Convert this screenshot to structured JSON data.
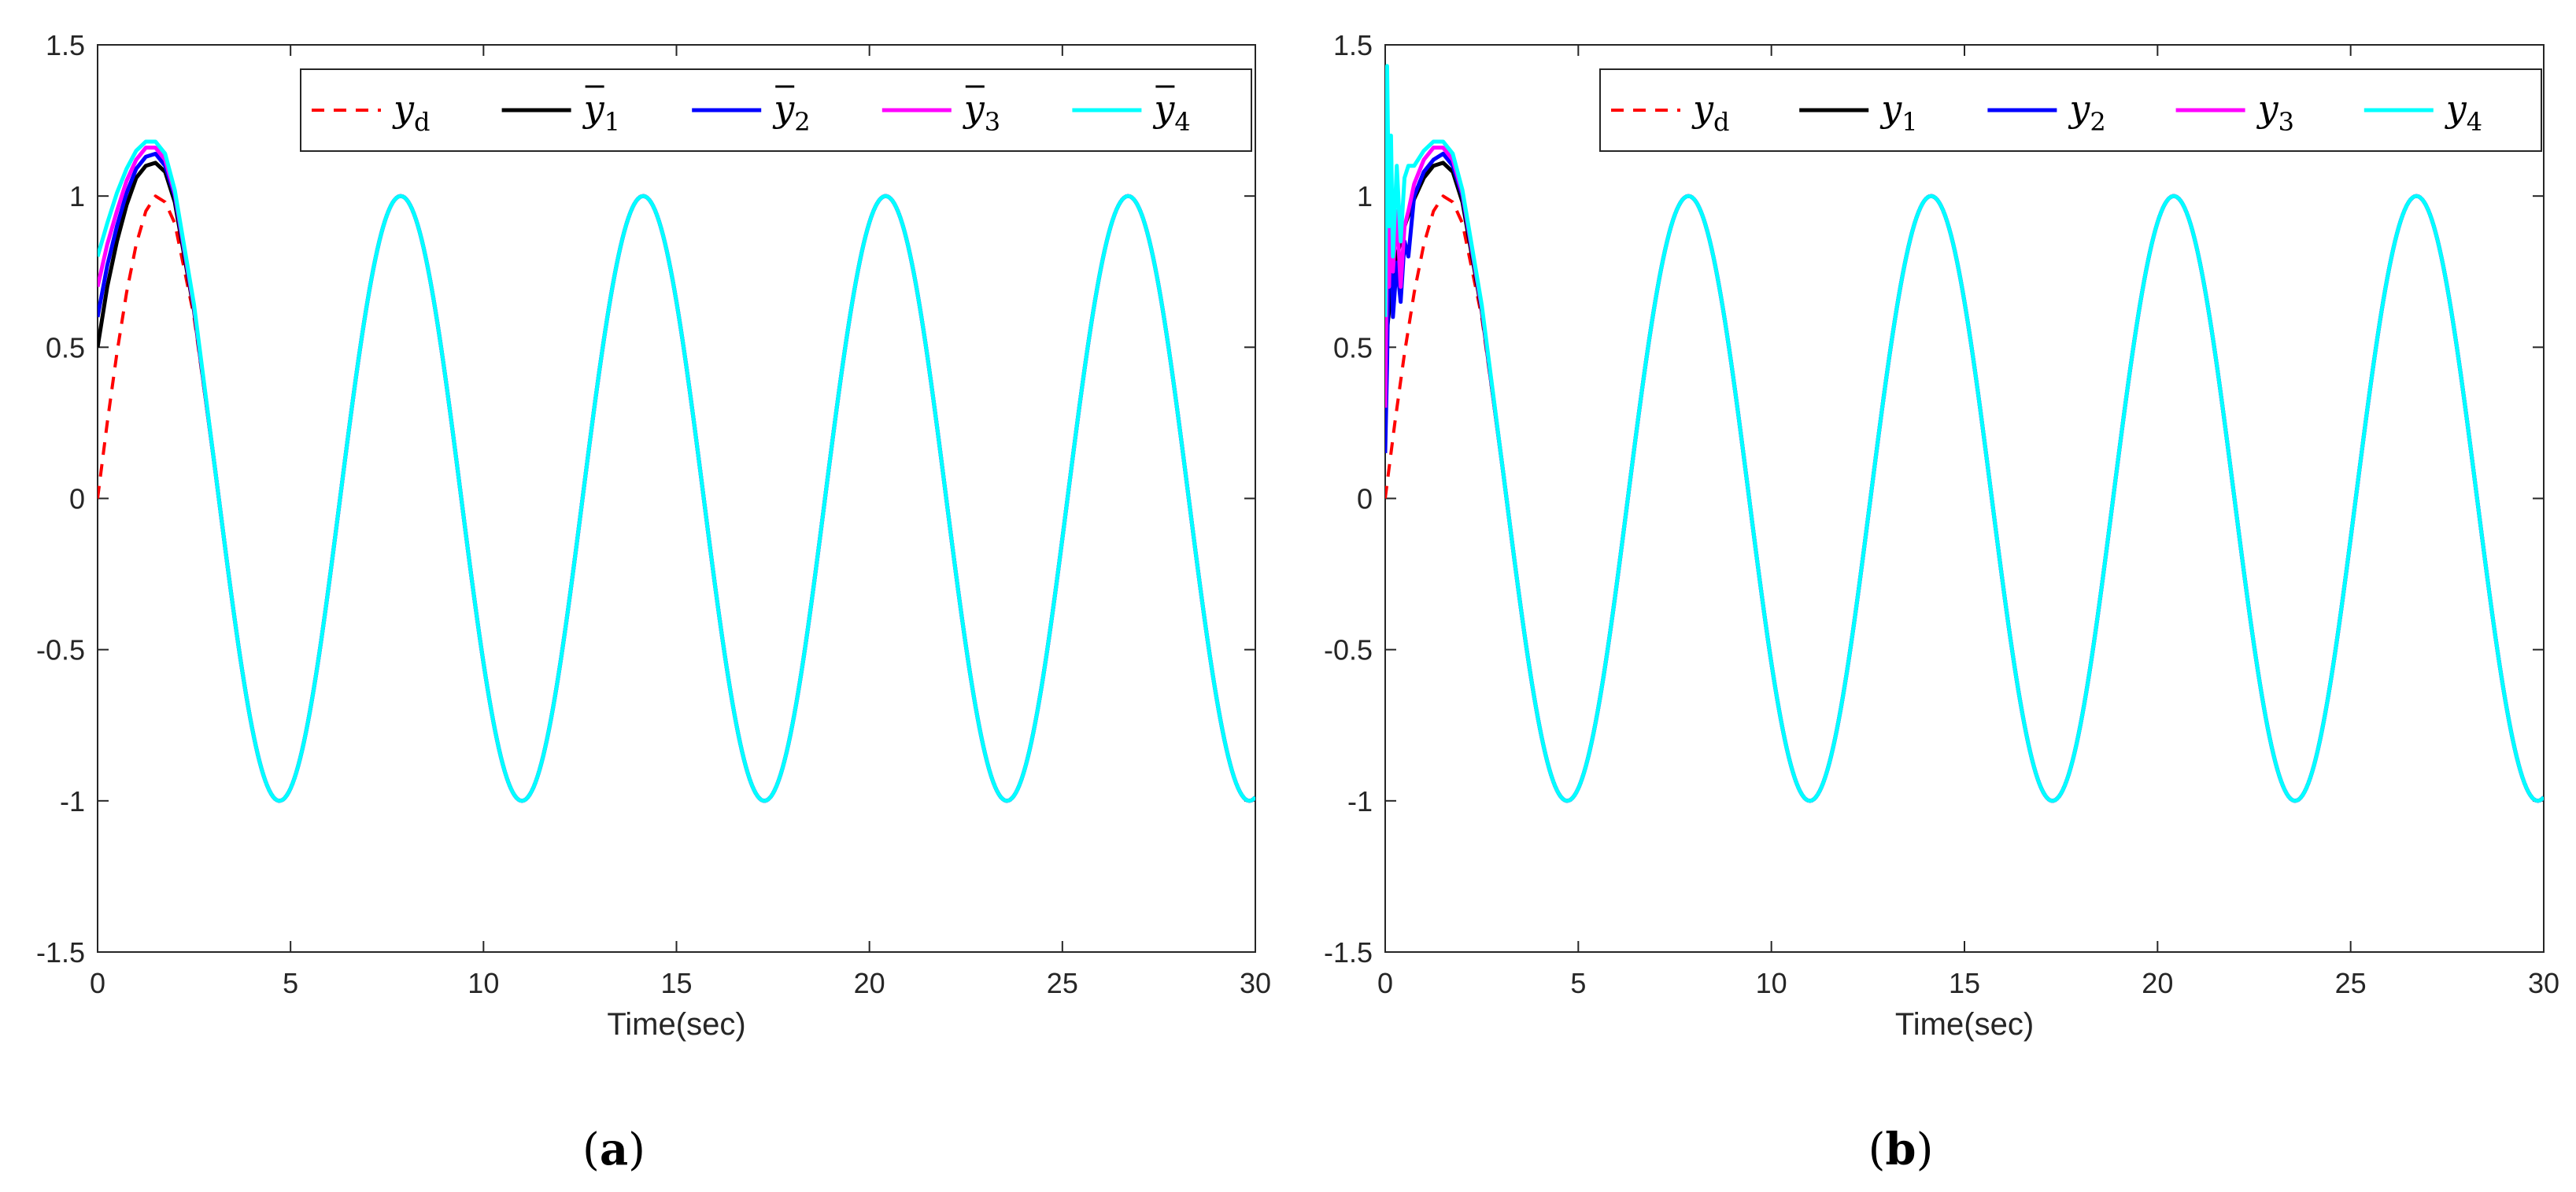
{
  "chart_data": [
    {
      "type": "line",
      "caption_open": "(",
      "caption_letter": "a",
      "caption_close": ")",
      "xlabel": "Time(sec)",
      "ylabel": "",
      "xlim": [
        0,
        30
      ],
      "ylim": [
        -1.5,
        1.5
      ],
      "x_ticks": [
        0,
        5,
        10,
        15,
        20,
        25,
        30
      ],
      "x_tick_labels": [
        "0",
        "5",
        "10",
        "15",
        "20",
        "25",
        "30"
      ],
      "y_ticks": [
        1.5,
        1,
        0.5,
        0,
        -0.5,
        -1,
        -1.5
      ],
      "y_tick_labels": [
        "1.5",
        "1",
        "0.5",
        "0",
        "-0.5",
        "-1",
        "-1.5"
      ],
      "grid": false,
      "legend_position": "top-right",
      "legend_orientation": "horizontal",
      "reference_function": "y = sin(t)",
      "series": [
        {
          "name": "y_d",
          "display": "y",
          "subscript": "d",
          "bar": false,
          "color": "#ff0000",
          "dash": "dashed",
          "x": [
            0,
            0.25,
            0.5,
            0.75,
            1.0,
            1.25,
            1.5,
            1.75,
            2.0,
            2.5,
            3.0
          ],
          "y": [
            0,
            0.25,
            0.48,
            0.68,
            0.84,
            0.95,
            1.0,
            0.98,
            0.91,
            0.6,
            0.14
          ]
        },
        {
          "name": "ȳ_1",
          "display": "y",
          "subscript": "1",
          "bar": true,
          "color": "#000000",
          "dash": "solid",
          "x": [
            0,
            0.25,
            0.5,
            0.75,
            1.0,
            1.25,
            1.5,
            1.75,
            2.0,
            2.5,
            3.0
          ],
          "y": [
            0.5,
            0.7,
            0.85,
            0.97,
            1.06,
            1.1,
            1.11,
            1.08,
            0.98,
            0.62,
            0.14
          ]
        },
        {
          "name": "ȳ_2",
          "display": "y",
          "subscript": "2",
          "bar": true,
          "color": "#0000ff",
          "dash": "solid",
          "x": [
            0,
            0.25,
            0.5,
            0.75,
            1.0,
            1.25,
            1.5,
            1.75,
            2.0,
            2.5,
            3.0
          ],
          "y": [
            0.6,
            0.77,
            0.9,
            1.01,
            1.09,
            1.13,
            1.14,
            1.1,
            1.0,
            0.63,
            0.14
          ]
        },
        {
          "name": "ȳ_3",
          "display": "y",
          "subscript": "3",
          "bar": true,
          "color": "#ff00ff",
          "dash": "solid",
          "x": [
            0,
            0.25,
            0.5,
            0.75,
            1.0,
            1.25,
            1.5,
            1.75,
            2.0,
            2.5,
            3.0
          ],
          "y": [
            0.7,
            0.84,
            0.95,
            1.05,
            1.12,
            1.16,
            1.16,
            1.12,
            1.01,
            0.63,
            0.14
          ]
        },
        {
          "name": "ȳ_4",
          "display": "y",
          "subscript": "4",
          "bar": true,
          "color": "#00ffff",
          "dash": "solid",
          "x": [
            0,
            0.25,
            0.5,
            0.75,
            1.0,
            1.25,
            1.5,
            1.75,
            2.0,
            2.5,
            3.0
          ],
          "y": [
            0.8,
            0.91,
            1.01,
            1.09,
            1.15,
            1.18,
            1.18,
            1.14,
            1.02,
            0.64,
            0.14
          ]
        }
      ]
    },
    {
      "type": "line",
      "caption_open": "(",
      "caption_letter": "b",
      "caption_close": ")",
      "xlabel": "Time(sec)",
      "ylabel": "",
      "xlim": [
        0,
        30
      ],
      "ylim": [
        -1.5,
        1.5
      ],
      "x_ticks": [
        0,
        5,
        10,
        15,
        20,
        25,
        30
      ],
      "x_tick_labels": [
        "0",
        "5",
        "10",
        "15",
        "20",
        "25",
        "30"
      ],
      "y_ticks": [
        1.5,
        1,
        0.5,
        0,
        -0.5,
        -1,
        -1.5
      ],
      "y_tick_labels": [
        "1.5",
        "1",
        "0.5",
        "0",
        "-0.5",
        "-1",
        "-1.5"
      ],
      "grid": false,
      "legend_position": "top-right",
      "legend_orientation": "horizontal",
      "reference_function": "y = sin(t)",
      "series": [
        {
          "name": "y_d",
          "display": "y",
          "subscript": "d",
          "bar": false,
          "color": "#ff0000",
          "dash": "dashed",
          "x": [
            0,
            0.25,
            0.5,
            0.75,
            1.0,
            1.25,
            1.5,
            1.75,
            2.0,
            2.5,
            3.0
          ],
          "y": [
            0,
            0.25,
            0.48,
            0.68,
            0.84,
            0.95,
            1.0,
            0.98,
            0.91,
            0.6,
            0.14
          ]
        },
        {
          "name": "y_1",
          "display": "y",
          "subscript": "1",
          "bar": false,
          "color": "#000000",
          "dash": "solid",
          "x": [
            0,
            0.1,
            0.2,
            0.3,
            0.5,
            0.75,
            1.0,
            1.25,
            1.5,
            1.75,
            2.0,
            2.5,
            3.0
          ],
          "y": [
            0.5,
            0.62,
            0.72,
            0.8,
            0.9,
            0.99,
            1.06,
            1.1,
            1.11,
            1.08,
            0.98,
            0.62,
            0.14
          ]
        },
        {
          "name": "y_2",
          "display": "y",
          "subscript": "2",
          "bar": false,
          "color": "#0000ff",
          "dash": "solid",
          "x": [
            0,
            0.05,
            0.1,
            0.15,
            0.2,
            0.3,
            0.4,
            0.5,
            0.6,
            0.75,
            1.0,
            1.25,
            1.5,
            1.75,
            2.0,
            2.5,
            3.0
          ],
          "y": [
            0.15,
            0.45,
            0.92,
            0.85,
            0.6,
            0.78,
            0.65,
            0.85,
            0.8,
            1.0,
            1.08,
            1.12,
            1.14,
            1.1,
            1.0,
            0.63,
            0.14
          ]
        },
        {
          "name": "y_3",
          "display": "y",
          "subscript": "3",
          "bar": false,
          "color": "#ff00ff",
          "dash": "solid",
          "x": [
            0,
            0.05,
            0.1,
            0.15,
            0.2,
            0.3,
            0.4,
            0.5,
            0.6,
            0.75,
            1.0,
            1.25,
            1.5,
            1.75,
            2.0,
            2.5,
            3.0
          ],
          "y": [
            0.3,
            0.9,
            0.7,
            1.0,
            0.75,
            0.95,
            0.7,
            0.9,
            0.95,
            1.04,
            1.12,
            1.16,
            1.16,
            1.12,
            1.01,
            0.63,
            0.14
          ]
        },
        {
          "name": "y_4",
          "display": "y",
          "subscript": "4",
          "bar": false,
          "color": "#00ffff",
          "dash": "solid",
          "x": [
            0,
            0.05,
            0.1,
            0.15,
            0.2,
            0.3,
            0.4,
            0.5,
            0.6,
            0.75,
            1.0,
            1.25,
            1.5,
            1.75,
            2.0,
            2.5,
            3.0
          ],
          "y": [
            0.6,
            1.43,
            0.9,
            1.2,
            0.8,
            1.1,
            0.85,
            1.06,
            1.1,
            1.1,
            1.15,
            1.18,
            1.18,
            1.14,
            1.02,
            0.64,
            0.14
          ]
        }
      ]
    }
  ]
}
